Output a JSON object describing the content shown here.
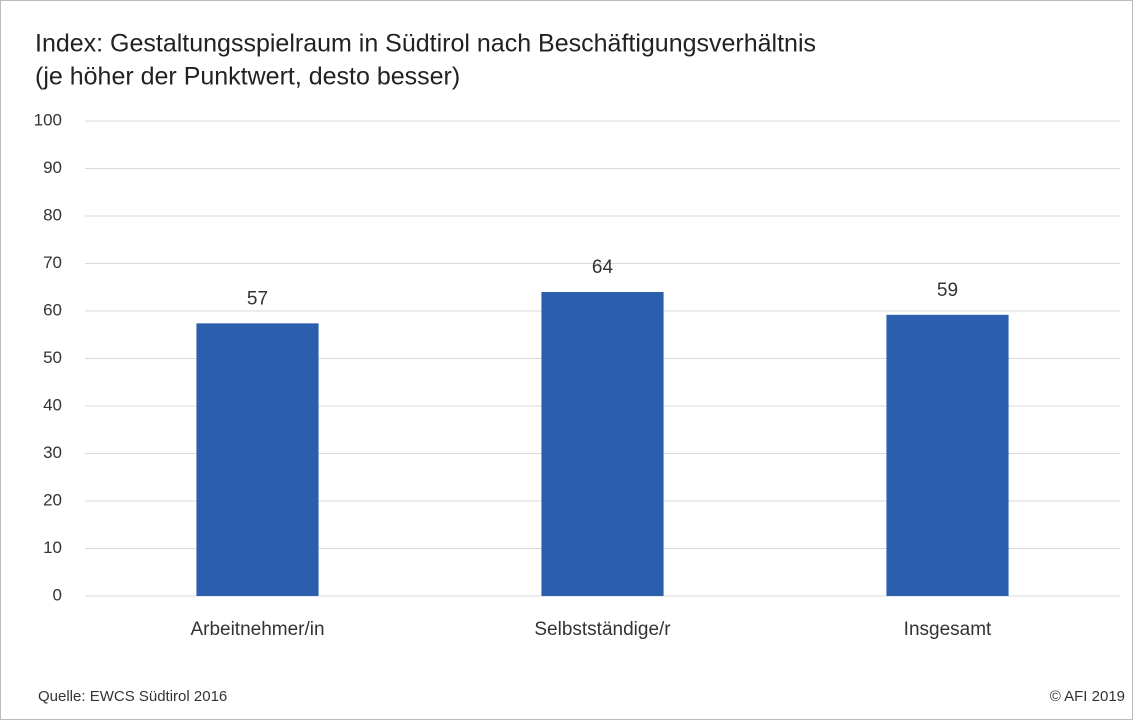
{
  "chart_data": {
    "type": "bar",
    "title": "Index: Gestaltungsspielraum in Südtirol nach Beschäftigungsverhältnis",
    "subtitle": "(je höher der Punktwert, desto besser)",
    "categories": [
      "Arbeitnehmer/in",
      "Selbstständige/r",
      "Insgesamt"
    ],
    "values": [
      57.4,
      64,
      59.2
    ],
    "value_labels": [
      "57",
      "64",
      "59"
    ],
    "color": "#2b5fad",
    "ylim": [
      0,
      100
    ],
    "yticks": [
      0,
      10,
      20,
      30,
      40,
      50,
      60,
      70,
      80,
      90,
      100
    ],
    "grid": true,
    "source": "Quelle: EWCS Südtirol 2016",
    "copyright": "© AFI 2019"
  }
}
